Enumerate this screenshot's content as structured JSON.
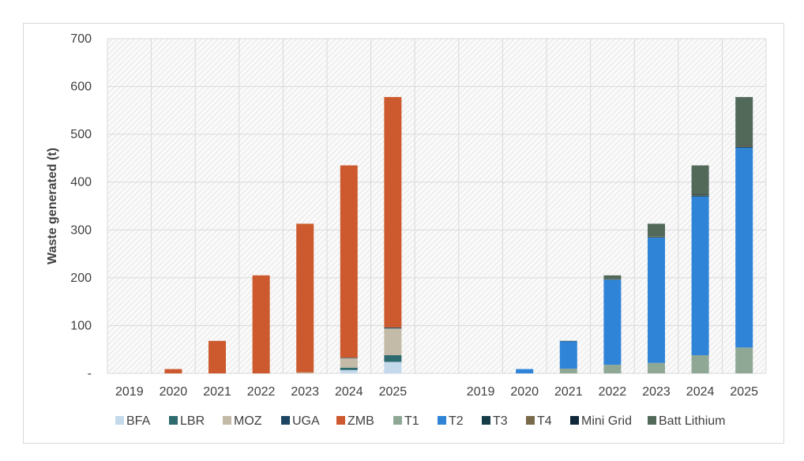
{
  "chart_data": {
    "type": "bar",
    "stacked": true,
    "ylabel": "Waste generated (t)",
    "ylim": [
      0,
      700
    ],
    "yticks": [
      "-",
      "100",
      "200",
      "300",
      "400",
      "500",
      "600",
      "700"
    ],
    "grid": true,
    "legend_position": "bottom",
    "categories": [
      "2019",
      "2020",
      "2021",
      "2022",
      "2023",
      "2024",
      "2025",
      "",
      "2019",
      "2020",
      "2021",
      "2022",
      "2023",
      "2024",
      "2025"
    ],
    "series": [
      {
        "name": "BFA",
        "color": "#c5d9ec",
        "values": [
          0,
          0,
          0,
          0,
          0,
          7,
          24,
          0,
          0,
          0,
          0,
          0,
          0,
          0,
          0
        ]
      },
      {
        "name": "LBR",
        "color": "#2e6b6e",
        "values": [
          0,
          0,
          0,
          0,
          0,
          5,
          14,
          0,
          0,
          0,
          0,
          0,
          0,
          0,
          0
        ]
      },
      {
        "name": "MOZ",
        "color": "#c3baa7",
        "values": [
          0,
          0,
          0,
          0,
          2,
          20,
          56,
          0,
          0,
          0,
          0,
          0,
          0,
          0,
          0
        ]
      },
      {
        "name": "UGA",
        "color": "#1b4560",
        "values": [
          0,
          0,
          0,
          0,
          0,
          1,
          2,
          0,
          0,
          0,
          0,
          0,
          0,
          0,
          0
        ]
      },
      {
        "name": "ZMB",
        "color": "#cc5a2e",
        "values": [
          0,
          9,
          68,
          205,
          311,
          402,
          482,
          0,
          0,
          0,
          0,
          0,
          0,
          0,
          0
        ]
      },
      {
        "name": "T1",
        "color": "#8fa895",
        "values": [
          0,
          0,
          0,
          0,
          0,
          0,
          0,
          0,
          0,
          0,
          10,
          18,
          22,
          38,
          54
        ]
      },
      {
        "name": "T2",
        "color": "#2f84d8",
        "values": [
          0,
          0,
          0,
          0,
          0,
          0,
          0,
          0,
          0,
          9,
          57,
          178,
          262,
          332,
          418
        ]
      },
      {
        "name": "T3",
        "color": "#163d47",
        "values": [
          0,
          0,
          0,
          0,
          0,
          0,
          0,
          0,
          0,
          0,
          1,
          1,
          1,
          2,
          2
        ]
      },
      {
        "name": "T4",
        "color": "#7a6a4c",
        "values": [
          0,
          0,
          0,
          0,
          0,
          0,
          0,
          0,
          0,
          0,
          0,
          1,
          1,
          1,
          2
        ]
      },
      {
        "name": "Mini Grid",
        "color": "#10283a",
        "values": [
          0,
          0,
          0,
          0,
          0,
          0,
          0,
          0,
          0,
          0,
          0,
          0,
          0,
          1,
          1
        ]
      },
      {
        "name": "Batt Lithium",
        "color": "#52695a",
        "values": [
          0,
          0,
          0,
          0,
          0,
          0,
          0,
          0,
          0,
          0,
          0,
          7,
          27,
          61,
          101
        ]
      }
    ]
  }
}
